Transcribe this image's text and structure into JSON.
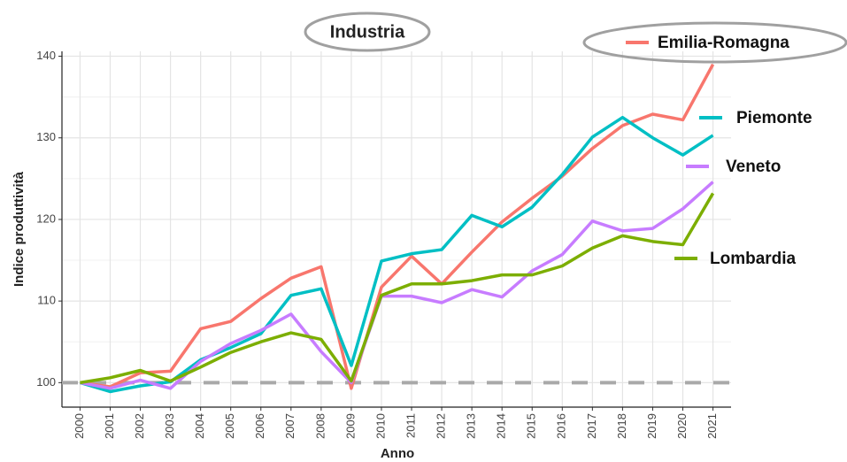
{
  "chart_data": {
    "type": "line",
    "title": "Industria",
    "x_label": "Anno",
    "y_label": "Indice produttività",
    "x": [
      2000,
      2001,
      2002,
      2003,
      2004,
      2005,
      2006,
      2007,
      2008,
      2009,
      2010,
      2011,
      2012,
      2013,
      2014,
      2015,
      2016,
      2017,
      2018,
      2019,
      2020,
      2021
    ],
    "xlim": [
      1999.4,
      2021.6
    ],
    "xticks": [
      2000,
      2001,
      2002,
      2003,
      2004,
      2005,
      2006,
      2007,
      2008,
      2009,
      2010,
      2011,
      2012,
      2013,
      2014,
      2015,
      2016,
      2017,
      2018,
      2019,
      2020,
      2021
    ],
    "ylim": [
      97,
      140.6
    ],
    "yticks": [
      100,
      110,
      120,
      130,
      140
    ],
    "grid": true,
    "reference_line": 100,
    "series": [
      {
        "name": "Emilia-Romagna",
        "color": "#f8766d",
        "values": [
          100,
          99.5,
          101.2,
          101.4,
          106.6,
          107.5,
          110.3,
          112.8,
          114.2,
          99.3,
          111.7,
          115.5,
          112.1,
          116,
          119.7,
          122.6,
          125.3,
          128.7,
          131.5,
          132.9,
          132.2,
          139
        ]
      },
      {
        "name": "Piemonte",
        "color": "#00bfc4",
        "values": [
          100,
          98.9,
          99.6,
          100.1,
          102.8,
          104.3,
          106,
          110.7,
          111.5,
          102.1,
          114.9,
          115.8,
          116.3,
          120.5,
          119.1,
          121.5,
          125.5,
          130.1,
          132.5,
          130,
          127.9,
          130.3
        ]
      },
      {
        "name": "Veneto",
        "color": "#c77cff",
        "values": [
          100,
          99.3,
          100.3,
          99.3,
          102.6,
          104.8,
          106.4,
          108.4,
          103.8,
          100,
          110.6,
          110.6,
          109.8,
          111.4,
          110.5,
          113.7,
          115.7,
          119.8,
          118.6,
          118.9,
          121.3,
          124.6
        ]
      },
      {
        "name": "Lombardia",
        "color": "#7cae00",
        "values": [
          100,
          100.6,
          101.5,
          100.2,
          101.9,
          103.7,
          105,
          106.1,
          105.3,
          100.2,
          110.7,
          112.1,
          112.1,
          112.5,
          113.2,
          113.2,
          114.3,
          116.5,
          118,
          117.3,
          116.9,
          123.2
        ]
      }
    ]
  }
}
